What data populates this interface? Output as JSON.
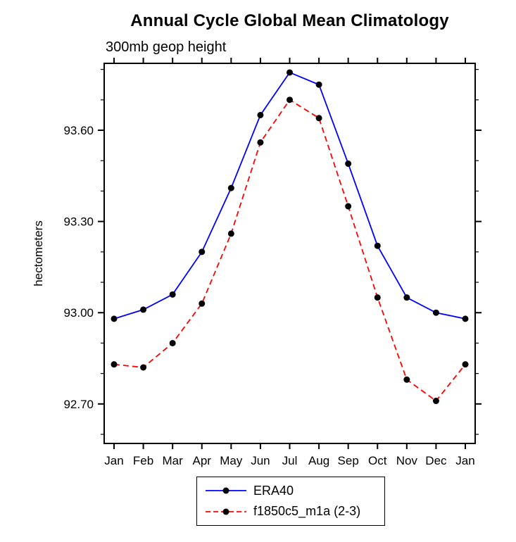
{
  "title": "Annual Cycle Global Mean Climatology",
  "subtitle": "300mb geop height",
  "ylabel": "hectometers",
  "legend": {
    "items": [
      {
        "label": "ERA40",
        "color": "#0000ff",
        "dash": "solid"
      },
      {
        "label": "f1850c5_m1a (2-3)",
        "color": "#ff0000",
        "dash": "dashed"
      }
    ]
  },
  "chart_data": {
    "type": "line",
    "title": "Annual Cycle Global Mean Climatology",
    "subtitle": "300mb geop height",
    "xlabel": "",
    "ylabel": "hectometers",
    "categories": [
      "Jan",
      "Feb",
      "Mar",
      "Apr",
      "May",
      "Jun",
      "Jul",
      "Aug",
      "Sep",
      "Oct",
      "Nov",
      "Dec",
      "Jan"
    ],
    "series": [
      {
        "name": "ERA40",
        "color": "#0000ff",
        "style": "solid",
        "marker": "circle",
        "marker_color": "#000000",
        "values": [
          92.98,
          93.01,
          93.06,
          93.2,
          93.41,
          93.65,
          93.79,
          93.75,
          93.49,
          93.22,
          93.05,
          93.0,
          92.98
        ]
      },
      {
        "name": "f1850c5_m1a (2-3)",
        "color": "#ff0000",
        "style": "dashed",
        "marker": "circle",
        "marker_color": "#000000",
        "values": [
          92.83,
          92.82,
          92.9,
          93.03,
          93.26,
          93.56,
          93.7,
          93.64,
          93.35,
          93.05,
          92.78,
          92.71,
          92.83
        ]
      }
    ],
    "ylim": [
      92.57,
      93.82
    ],
    "yticks": [
      92.7,
      93.0,
      93.3,
      93.6
    ],
    "ytick_labels": [
      "92.70",
      "93.00",
      "93.30",
      "93.60"
    ],
    "minor_tick_step": 0.1,
    "grid": false,
    "legend_position": "bottom-center"
  }
}
